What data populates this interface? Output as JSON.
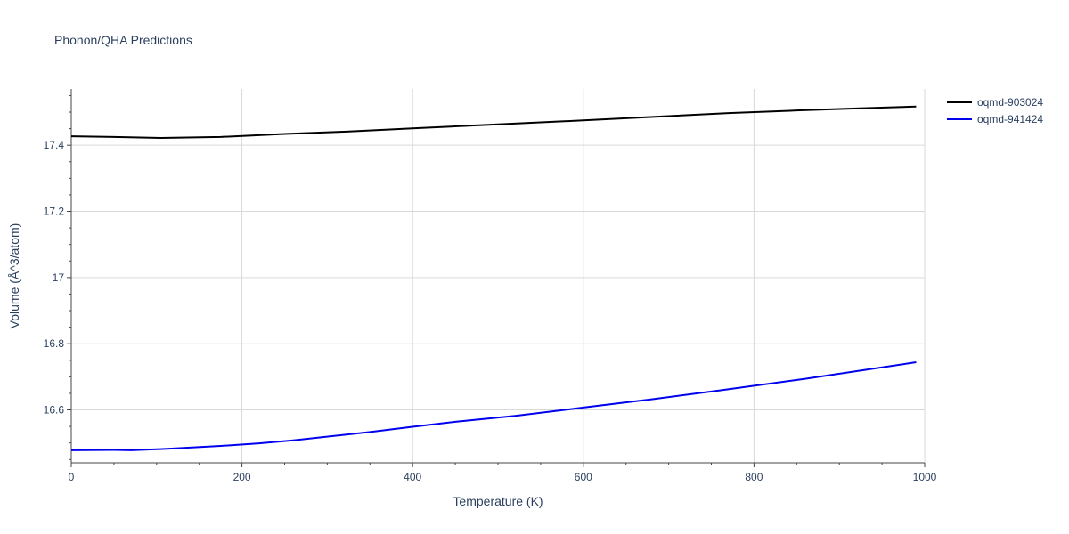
{
  "chart_data": {
    "type": "line",
    "title": "Phonon/QHA Predictions",
    "xlabel": "Temperature (K)",
    "ylabel": "Volume (Å^3/atom)",
    "xlim": [
      0,
      1000
    ],
    "ylim": [
      16.44,
      17.57
    ],
    "x_ticks": [
      0,
      200,
      400,
      600,
      800,
      1000
    ],
    "x_tick_labels": [
      "0",
      "200",
      "400",
      "600",
      "800",
      "1000"
    ],
    "y_ticks": [
      16.6,
      16.8,
      17.0,
      17.2,
      17.4
    ],
    "y_tick_labels": [
      "16.6",
      "16.8",
      "17",
      "17.2",
      "17.4"
    ],
    "grid": true,
    "legend_position": "top-right",
    "series": [
      {
        "name": "oqmd-903024",
        "color": "#000000",
        "x": [
          0,
          50,
          105,
          175,
          250,
          320,
          400,
          500,
          600,
          700,
          770,
          850,
          920,
          990
        ],
        "y": [
          17.427,
          17.425,
          17.422,
          17.425,
          17.434,
          17.441,
          17.451,
          17.463,
          17.475,
          17.488,
          17.497,
          17.505,
          17.511,
          17.517
        ]
      },
      {
        "name": "oqmd-941424",
        "color": "#0000ee",
        "x": [
          0,
          50,
          70,
          110,
          175,
          220,
          260,
          350,
          400,
          450,
          520,
          600,
          680,
          760,
          860,
          990
        ],
        "y": [
          16.478,
          16.479,
          16.478,
          16.482,
          16.491,
          16.499,
          16.508,
          16.533,
          16.549,
          16.564,
          16.582,
          16.607,
          16.632,
          16.659,
          16.694,
          16.744
        ]
      }
    ]
  }
}
